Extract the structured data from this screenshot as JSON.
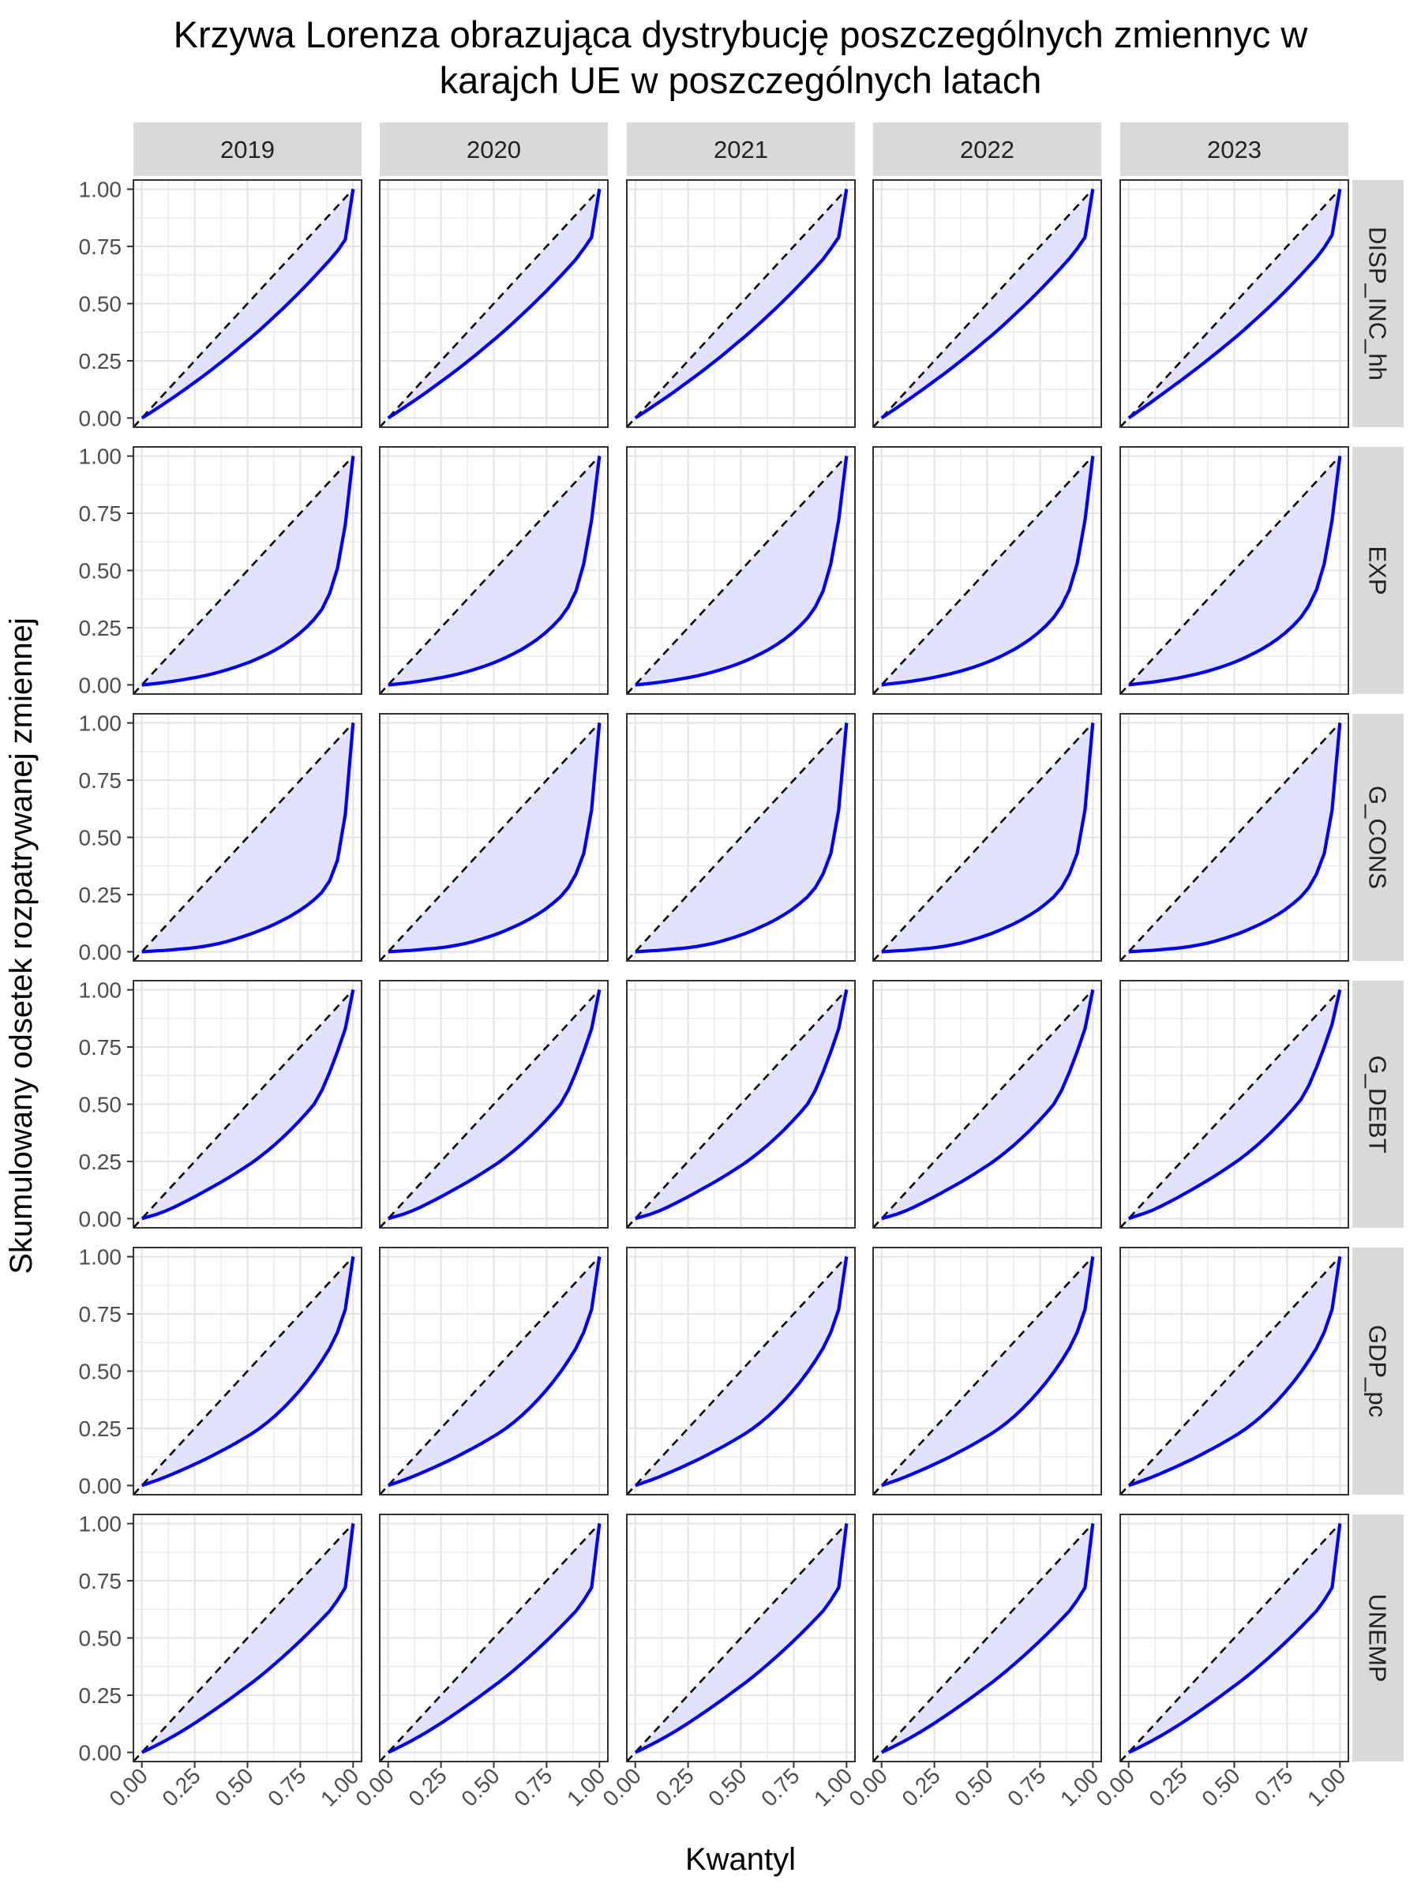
{
  "chart_data": {
    "type": "area",
    "title_lines": [
      "Krzywa Lorenza obrazująca dystrybucję poszczególnych zmiennyc w",
      "karajch UE w poszczególnych latach"
    ],
    "xlabel": "Kwantyl",
    "ylabel": "Skumulowany odsetek rozpatrywanej zmiennej",
    "columns": [
      "2019",
      "2020",
      "2021",
      "2022",
      "2023"
    ],
    "rows": [
      "DISP_INC_hh",
      "EXP",
      "G_CONS",
      "G_DEBT",
      "GDP_pc",
      "UNEMP"
    ],
    "x_ticks": [
      "0.00",
      "0.25",
      "0.50",
      "0.75",
      "1.00"
    ],
    "y_ticks": [
      "0.00",
      "0.25",
      "0.50",
      "0.75",
      "1.00"
    ],
    "xlim": [
      -0.04,
      1.04
    ],
    "ylim": [
      -0.04,
      1.04
    ],
    "grid": true,
    "x": [
      0,
      0.037,
      0.074,
      0.111,
      0.148,
      0.185,
      0.222,
      0.259,
      0.296,
      0.333,
      0.37,
      0.407,
      0.444,
      0.481,
      0.519,
      0.556,
      0.593,
      0.63,
      0.667,
      0.704,
      0.741,
      0.778,
      0.815,
      0.852,
      0.889,
      0.926,
      0.963,
      1
    ],
    "series": {
      "DISP_INC_hh": [
        [
          0,
          0.021,
          0.043,
          0.066,
          0.089,
          0.113,
          0.137,
          0.162,
          0.187,
          0.213,
          0.24,
          0.267,
          0.295,
          0.324,
          0.353,
          0.383,
          0.414,
          0.446,
          0.478,
          0.511,
          0.545,
          0.58,
          0.616,
          0.653,
          0.69,
          0.73,
          0.78,
          1
        ],
        [
          0,
          0.022,
          0.045,
          0.068,
          0.091,
          0.115,
          0.14,
          0.165,
          0.19,
          0.216,
          0.243,
          0.27,
          0.298,
          0.327,
          0.356,
          0.386,
          0.417,
          0.449,
          0.481,
          0.514,
          0.548,
          0.583,
          0.619,
          0.656,
          0.694,
          0.74,
          0.79,
          1
        ],
        [
          0,
          0.022,
          0.045,
          0.068,
          0.091,
          0.115,
          0.14,
          0.165,
          0.19,
          0.216,
          0.243,
          0.27,
          0.298,
          0.327,
          0.356,
          0.386,
          0.417,
          0.449,
          0.481,
          0.514,
          0.548,
          0.583,
          0.619,
          0.656,
          0.694,
          0.74,
          0.79,
          1
        ],
        [
          0,
          0.023,
          0.046,
          0.07,
          0.094,
          0.118,
          0.143,
          0.168,
          0.193,
          0.219,
          0.246,
          0.273,
          0.301,
          0.33,
          0.359,
          0.389,
          0.42,
          0.452,
          0.484,
          0.517,
          0.551,
          0.586,
          0.622,
          0.659,
          0.697,
          0.74,
          0.79,
          1
        ],
        [
          0,
          0.024,
          0.048,
          0.072,
          0.097,
          0.122,
          0.147,
          0.172,
          0.198,
          0.224,
          0.251,
          0.278,
          0.306,
          0.334,
          0.363,
          0.393,
          0.424,
          0.455,
          0.487,
          0.52,
          0.554,
          0.589,
          0.625,
          0.662,
          0.7,
          0.745,
          0.8,
          1
        ]
      ],
      "EXP": [
        [
          0,
          0.003,
          0.007,
          0.011,
          0.016,
          0.021,
          0.027,
          0.033,
          0.04,
          0.048,
          0.057,
          0.067,
          0.078,
          0.09,
          0.103,
          0.118,
          0.134,
          0.152,
          0.172,
          0.195,
          0.221,
          0.251,
          0.286,
          0.33,
          0.4,
          0.51,
          0.7,
          1
        ],
        [
          0,
          0.003,
          0.007,
          0.011,
          0.016,
          0.021,
          0.027,
          0.033,
          0.04,
          0.048,
          0.057,
          0.067,
          0.078,
          0.09,
          0.104,
          0.119,
          0.136,
          0.154,
          0.175,
          0.198,
          0.225,
          0.256,
          0.292,
          0.34,
          0.41,
          0.53,
          0.72,
          1
        ],
        [
          0,
          0.003,
          0.007,
          0.011,
          0.016,
          0.021,
          0.027,
          0.033,
          0.04,
          0.048,
          0.057,
          0.067,
          0.078,
          0.09,
          0.104,
          0.119,
          0.136,
          0.154,
          0.175,
          0.198,
          0.225,
          0.256,
          0.292,
          0.34,
          0.41,
          0.53,
          0.72,
          1
        ],
        [
          0,
          0.004,
          0.008,
          0.012,
          0.017,
          0.022,
          0.028,
          0.035,
          0.042,
          0.05,
          0.059,
          0.069,
          0.08,
          0.092,
          0.106,
          0.121,
          0.138,
          0.156,
          0.177,
          0.2,
          0.227,
          0.258,
          0.295,
          0.345,
          0.415,
          0.53,
          0.72,
          1
        ],
        [
          0,
          0.004,
          0.008,
          0.012,
          0.017,
          0.022,
          0.028,
          0.035,
          0.042,
          0.05,
          0.059,
          0.069,
          0.08,
          0.092,
          0.106,
          0.121,
          0.138,
          0.156,
          0.177,
          0.2,
          0.227,
          0.258,
          0.295,
          0.345,
          0.415,
          0.53,
          0.72,
          1
        ]
      ],
      "G_CONS": [
        [
          0,
          0.002,
          0.004,
          0.006,
          0.009,
          0.012,
          0.015,
          0.019,
          0.024,
          0.03,
          0.037,
          0.046,
          0.056,
          0.067,
          0.079,
          0.092,
          0.106,
          0.121,
          0.138,
          0.156,
          0.177,
          0.2,
          0.227,
          0.26,
          0.31,
          0.4,
          0.6,
          1
        ],
        [
          0,
          0.002,
          0.004,
          0.006,
          0.009,
          0.012,
          0.015,
          0.019,
          0.024,
          0.03,
          0.037,
          0.046,
          0.056,
          0.067,
          0.079,
          0.093,
          0.108,
          0.124,
          0.142,
          0.162,
          0.184,
          0.21,
          0.24,
          0.28,
          0.34,
          0.43,
          0.62,
          1
        ],
        [
          0,
          0.002,
          0.004,
          0.006,
          0.009,
          0.012,
          0.015,
          0.019,
          0.024,
          0.03,
          0.037,
          0.046,
          0.056,
          0.067,
          0.079,
          0.093,
          0.108,
          0.124,
          0.142,
          0.162,
          0.184,
          0.21,
          0.24,
          0.28,
          0.34,
          0.43,
          0.62,
          1
        ],
        [
          0,
          0.002,
          0.004,
          0.006,
          0.009,
          0.012,
          0.015,
          0.019,
          0.024,
          0.03,
          0.037,
          0.046,
          0.056,
          0.067,
          0.079,
          0.093,
          0.108,
          0.124,
          0.142,
          0.162,
          0.184,
          0.21,
          0.24,
          0.28,
          0.34,
          0.43,
          0.62,
          1
        ],
        [
          0,
          0.002,
          0.004,
          0.006,
          0.009,
          0.012,
          0.015,
          0.019,
          0.024,
          0.03,
          0.037,
          0.046,
          0.056,
          0.067,
          0.079,
          0.093,
          0.108,
          0.124,
          0.142,
          0.162,
          0.184,
          0.21,
          0.24,
          0.28,
          0.34,
          0.43,
          0.62,
          1
        ]
      ],
      "G_DEBT": [
        [
          0,
          0.01,
          0.02,
          0.033,
          0.048,
          0.065,
          0.082,
          0.1,
          0.119,
          0.138,
          0.157,
          0.177,
          0.198,
          0.22,
          0.243,
          0.268,
          0.295,
          0.324,
          0.355,
          0.388,
          0.423,
          0.46,
          0.5,
          0.56,
          0.64,
          0.73,
          0.83,
          1
        ],
        [
          0,
          0.01,
          0.02,
          0.033,
          0.048,
          0.065,
          0.082,
          0.1,
          0.119,
          0.138,
          0.157,
          0.177,
          0.198,
          0.22,
          0.243,
          0.268,
          0.295,
          0.324,
          0.355,
          0.388,
          0.423,
          0.46,
          0.5,
          0.56,
          0.64,
          0.73,
          0.83,
          1
        ],
        [
          0,
          0.01,
          0.02,
          0.033,
          0.048,
          0.065,
          0.082,
          0.1,
          0.119,
          0.138,
          0.157,
          0.177,
          0.198,
          0.22,
          0.243,
          0.268,
          0.295,
          0.324,
          0.355,
          0.388,
          0.423,
          0.46,
          0.5,
          0.56,
          0.64,
          0.73,
          0.83,
          1
        ],
        [
          0,
          0.01,
          0.02,
          0.033,
          0.048,
          0.065,
          0.082,
          0.1,
          0.119,
          0.138,
          0.157,
          0.177,
          0.198,
          0.22,
          0.243,
          0.268,
          0.295,
          0.324,
          0.355,
          0.388,
          0.423,
          0.46,
          0.5,
          0.56,
          0.64,
          0.73,
          0.83,
          1
        ],
        [
          0,
          0.012,
          0.023,
          0.036,
          0.052,
          0.069,
          0.087,
          0.106,
          0.125,
          0.145,
          0.165,
          0.186,
          0.208,
          0.231,
          0.255,
          0.281,
          0.309,
          0.339,
          0.371,
          0.405,
          0.441,
          0.479,
          0.52,
          0.58,
          0.66,
          0.75,
          0.85,
          1
        ]
      ],
      "GDP_pc": [
        [
          0,
          0.012,
          0.024,
          0.037,
          0.051,
          0.066,
          0.081,
          0.097,
          0.113,
          0.13,
          0.148,
          0.166,
          0.185,
          0.205,
          0.226,
          0.249,
          0.275,
          0.304,
          0.336,
          0.371,
          0.409,
          0.45,
          0.495,
          0.545,
          0.6,
          0.67,
          0.77,
          1
        ],
        [
          0,
          0.012,
          0.024,
          0.037,
          0.051,
          0.066,
          0.081,
          0.097,
          0.113,
          0.13,
          0.148,
          0.166,
          0.185,
          0.205,
          0.226,
          0.249,
          0.275,
          0.304,
          0.336,
          0.371,
          0.409,
          0.45,
          0.495,
          0.545,
          0.6,
          0.67,
          0.77,
          1
        ],
        [
          0,
          0.012,
          0.024,
          0.037,
          0.051,
          0.066,
          0.081,
          0.097,
          0.113,
          0.13,
          0.148,
          0.166,
          0.185,
          0.205,
          0.226,
          0.249,
          0.275,
          0.304,
          0.336,
          0.371,
          0.409,
          0.45,
          0.495,
          0.545,
          0.6,
          0.67,
          0.77,
          1
        ],
        [
          0,
          0.012,
          0.024,
          0.037,
          0.051,
          0.066,
          0.081,
          0.097,
          0.113,
          0.13,
          0.148,
          0.166,
          0.185,
          0.205,
          0.226,
          0.249,
          0.275,
          0.304,
          0.336,
          0.371,
          0.409,
          0.45,
          0.495,
          0.545,
          0.6,
          0.67,
          0.77,
          1
        ],
        [
          0,
          0.012,
          0.024,
          0.037,
          0.051,
          0.066,
          0.081,
          0.097,
          0.113,
          0.13,
          0.148,
          0.166,
          0.185,
          0.205,
          0.226,
          0.249,
          0.275,
          0.304,
          0.336,
          0.371,
          0.409,
          0.45,
          0.495,
          0.545,
          0.6,
          0.67,
          0.77,
          1
        ]
      ],
      "UNEMP": [
        [
          0,
          0.016,
          0.033,
          0.051,
          0.07,
          0.09,
          0.111,
          0.133,
          0.156,
          0.179,
          0.203,
          0.227,
          0.252,
          0.277,
          0.303,
          0.33,
          0.358,
          0.387,
          0.417,
          0.448,
          0.48,
          0.513,
          0.547,
          0.582,
          0.618,
          0.665,
          0.72,
          1
        ],
        [
          0,
          0.016,
          0.033,
          0.051,
          0.07,
          0.09,
          0.111,
          0.133,
          0.156,
          0.179,
          0.203,
          0.227,
          0.252,
          0.277,
          0.303,
          0.33,
          0.358,
          0.387,
          0.417,
          0.448,
          0.48,
          0.513,
          0.547,
          0.582,
          0.618,
          0.665,
          0.72,
          1
        ],
        [
          0,
          0.016,
          0.033,
          0.051,
          0.07,
          0.09,
          0.111,
          0.133,
          0.156,
          0.179,
          0.203,
          0.227,
          0.252,
          0.277,
          0.303,
          0.33,
          0.358,
          0.387,
          0.417,
          0.448,
          0.48,
          0.513,
          0.547,
          0.582,
          0.618,
          0.665,
          0.72,
          1
        ],
        [
          0,
          0.016,
          0.033,
          0.051,
          0.07,
          0.09,
          0.111,
          0.133,
          0.156,
          0.179,
          0.203,
          0.227,
          0.252,
          0.277,
          0.303,
          0.33,
          0.358,
          0.387,
          0.417,
          0.448,
          0.48,
          0.513,
          0.547,
          0.582,
          0.618,
          0.665,
          0.72,
          1
        ],
        [
          0,
          0.016,
          0.033,
          0.051,
          0.07,
          0.09,
          0.111,
          0.133,
          0.156,
          0.179,
          0.203,
          0.227,
          0.252,
          0.277,
          0.303,
          0.33,
          0.358,
          0.387,
          0.417,
          0.448,
          0.48,
          0.513,
          0.547,
          0.582,
          0.618,
          0.665,
          0.72,
          1
        ]
      ]
    },
    "equality_line": "dashed black diagonal",
    "colors": {
      "curve": "#0000ee",
      "fill": "#e0e0ff",
      "strip": "#d9d9d9",
      "grid": "#e3e3e3",
      "equality": "#000000"
    }
  }
}
